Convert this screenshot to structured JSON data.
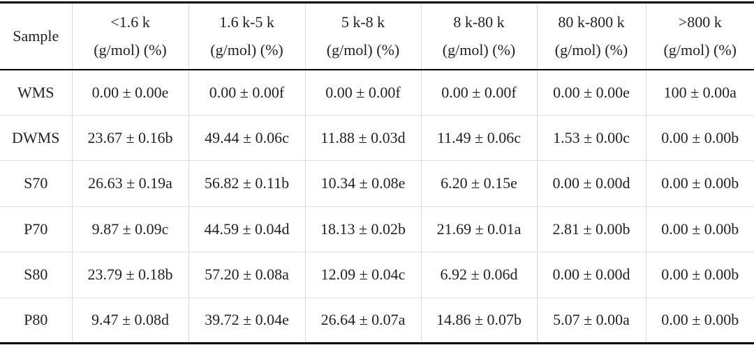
{
  "table": {
    "header": {
      "sample": "Sample",
      "columns": [
        {
          "lines": [
            "<1.6 k",
            "(g/mol) (%)"
          ]
        },
        {
          "lines": [
            "1.6 k-5 k",
            "(g/mol) (%)"
          ]
        },
        {
          "lines": [
            "5 k-8 k",
            "(g/mol) (%)"
          ]
        },
        {
          "lines": [
            "8 k-80 k",
            "(g/mol) (%)"
          ]
        },
        {
          "lines": [
            "80 k-800 k",
            "(g/mol) (%)"
          ]
        },
        {
          "lines": [
            ">800 k",
            "(g/mol) (%)"
          ]
        }
      ]
    },
    "rows": [
      [
        "WMS",
        "0.00 ± 0.00e",
        "0.00 ± 0.00f",
        "0.00 ± 0.00f",
        "0.00 ± 0.00f",
        "0.00 ± 0.00e",
        "100 ± 0.00a"
      ],
      [
        "DWMS",
        "23.67 ± 0.16b",
        "49.44 ± 0.06c",
        "11.88 ± 0.03d",
        "11.49 ± 0.06c",
        "1.53 ± 0.00c",
        "0.00 ± 0.00b"
      ],
      [
        "S70",
        "26.63 ± 0.19a",
        "56.82 ± 0.11b",
        "10.34 ± 0.08e",
        "6.20 ± 0.15e",
        "0.00 ± 0.00d",
        "0.00 ± 0.00b"
      ],
      [
        "P70",
        "9.87 ± 0.09c",
        "44.59 ± 0.04d",
        "18.13 ± 0.02b",
        "21.69 ± 0.01a",
        "2.81 ± 0.00b",
        "0.00 ± 0.00b"
      ],
      [
        "S80",
        "23.79 ± 0.18b",
        "57.20 ± 0.08a",
        "12.09 ± 0.04c",
        "6.92 ± 0.06d",
        "0.00 ± 0.00d",
        "0.00 ± 0.00b"
      ],
      [
        "P80",
        "9.47 ± 0.08d",
        "39.72 ± 0.04e",
        "26.64 ± 0.07a",
        "14.86 ± 0.07b",
        "5.07 ± 0.00a",
        "0.00 ± 0.00b"
      ]
    ]
  }
}
